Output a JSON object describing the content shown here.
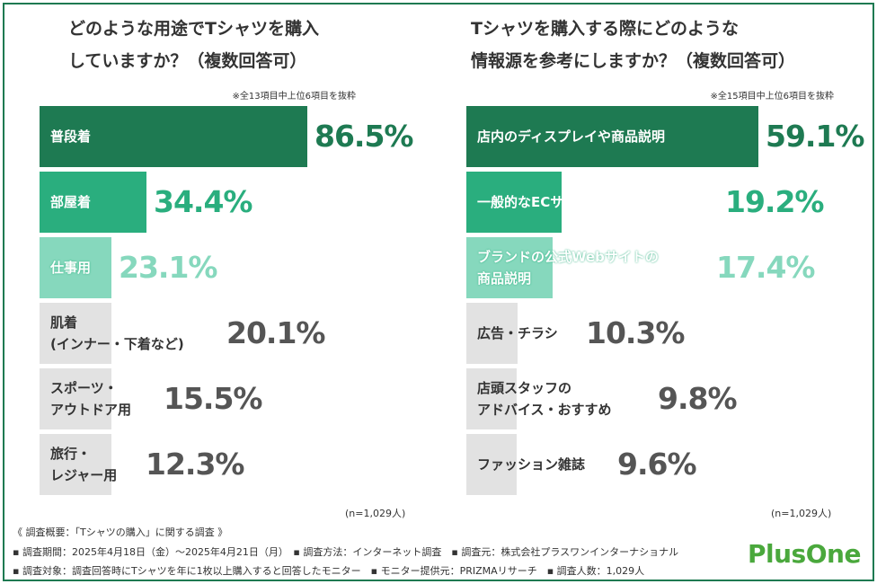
{
  "left": {
    "title": "どのような用途でTシャツを購入\nしていますか？（複数回答可）",
    "note": "※全13項目中上位6項目を抜粋",
    "n": "(n=1,029人)"
  },
  "right": {
    "title": "Tシャツを購入する際にどのような\n情報源を参考にしますか？（複数回答可）",
    "note": "※全15項目中上位6項目を抜粋",
    "n": "(n=1,029人)"
  },
  "chart_data": [
    {
      "type": "bar",
      "orientation": "horizontal",
      "title": "どのような用途でTシャツを購入していますか？（複数回答可）",
      "categories": [
        "普段着",
        "部屋着",
        "仕事用",
        "肌着\n(インナー・下着など)",
        "スポーツ・\nアウトドア用",
        "旅行・\nレジャー用"
      ],
      "values": [
        86.5,
        34.4,
        23.1,
        20.1,
        15.5,
        12.3
      ],
      "value_labels": [
        "86.5%",
        "34.4%",
        "23.1%",
        "20.1%",
        "15.5%",
        "12.3%"
      ],
      "colors": [
        "#1e7a52",
        "#2aae7e",
        "#86d8bd",
        "#e2e2e2",
        "#e2e2e2",
        "#e2e2e2"
      ],
      "value_colors": [
        "#1e7a52",
        "#2aae7e",
        "#86d8bd",
        "#555555",
        "#555555",
        "#555555"
      ],
      "xlim": [
        0,
        100
      ],
      "grid": false
    },
    {
      "type": "bar",
      "orientation": "horizontal",
      "title": "Tシャツを購入する際にどのような情報源を参考にしますか？（複数回答可）",
      "categories": [
        "店内のディスプレイや商品説明",
        "一般的なECサイトの商品説明",
        "ブランドの公式Webサイトの\n商品説明",
        "広告・チラシ",
        "店頭スタッフの\nアドバイス・おすすめ",
        "ファッション雑誌"
      ],
      "values": [
        59.1,
        19.2,
        17.4,
        10.3,
        9.8,
        9.6
      ],
      "value_labels": [
        "59.1%",
        "19.2%",
        "17.4%",
        "10.3%",
        "9.8%",
        "9.6%"
      ],
      "colors": [
        "#1e7a52",
        "#2aae7e",
        "#86d8bd",
        "#e2e2e2",
        "#e2e2e2",
        "#e2e2e2"
      ],
      "value_colors": [
        "#1e7a52",
        "#2aae7e",
        "#86d8bd",
        "#555555",
        "#555555",
        "#555555"
      ],
      "xlim": [
        0,
        100
      ],
      "grid": false
    }
  ],
  "footer": {
    "line1": "《 調査概要：「Tシャツの購入」に関する調査 》",
    "line2": "▪ 調査期間：2025年4月18日（金）〜2025年4月21日（月）　▪ 調査方法：インターネット調査　▪ 調査元：株式会社プラスワンインターナショナル",
    "line3": "▪ 調査対象：調査回答時にTシャツを年に1枚以上購入すると回答したモニター　▪ モニター提供元：PRIZMAリサーチ　▪ 調査人数：1,029人"
  },
  "logo": "PlusOne"
}
